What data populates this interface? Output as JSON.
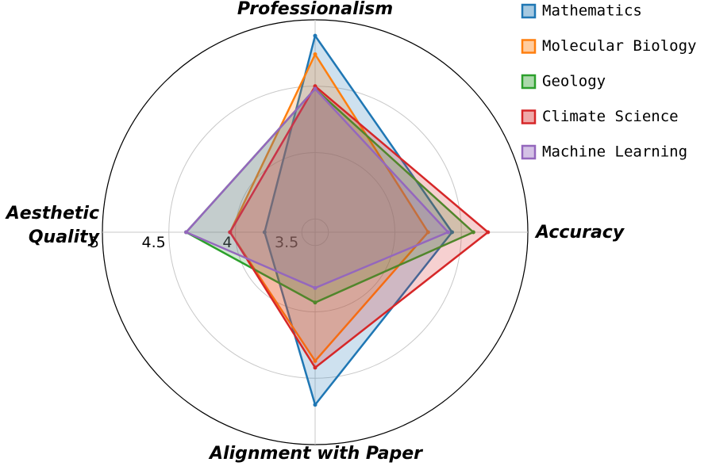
{
  "chart_data": {
    "type": "radar",
    "categories": [
      "Professionalism",
      "Accuracy",
      "Alignment with Paper",
      "Aesthetic Quality"
    ],
    "series": [
      {
        "name": "Mathematics",
        "color": "#1f77b4",
        "values": [
          4.88,
          4.43,
          4.7,
          3.78
        ]
      },
      {
        "name": "Molecular Biology",
        "color": "#ff7f0e",
        "values": [
          4.74,
          4.25,
          4.37,
          4.04
        ]
      },
      {
        "name": "Geology",
        "color": "#2ca02c",
        "values": [
          4.48,
          4.59,
          3.93,
          4.37
        ]
      },
      {
        "name": "Climate Science",
        "color": "#d62728",
        "values": [
          4.5,
          4.7,
          4.42,
          4.04
        ]
      },
      {
        "name": "Machine Learning",
        "color": "#9467bd",
        "values": [
          4.48,
          4.4,
          3.82,
          4.37
        ]
      }
    ],
    "ylim": [
      3.4,
      5
    ],
    "yticks": [
      3.5,
      4,
      4.5,
      5
    ],
    "grid": true,
    "legend": "upper right"
  }
}
